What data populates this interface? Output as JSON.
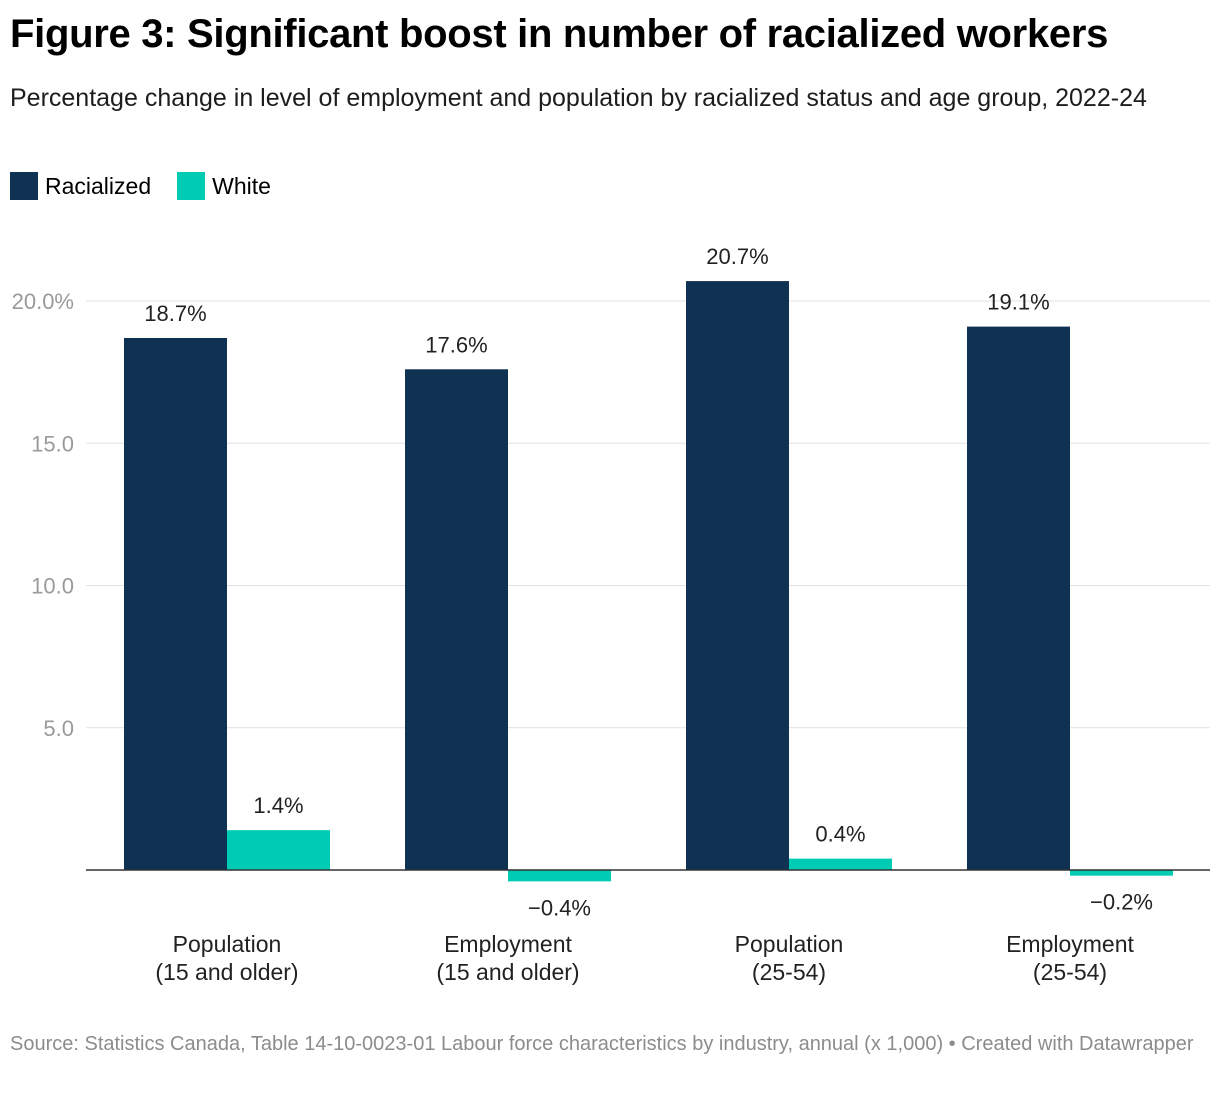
{
  "title": "Figure 3: Significant boost in number of racialized workers",
  "subtitle": "Percentage change in level of employment and population by racialized status and age group, 2022-24",
  "legend": [
    {
      "name": "Racialized",
      "color": "#0f3152"
    },
    {
      "name": "White",
      "color": "#00ccb4"
    }
  ],
  "source": "Source: Statistics Canada, Table 14-10-0023-01 Labour force characteristics by industry, annual (x 1,000) • Created with Datawrapper",
  "chart_data": {
    "type": "bar",
    "title": "Figure 3: Significant boost in number of racialized workers",
    "xlabel": "",
    "ylabel": "",
    "ylim": [
      0,
      20
    ],
    "yticks": [
      {
        "value": 20,
        "label": "20.0%"
      },
      {
        "value": 15,
        "label": "15.0"
      },
      {
        "value": 10,
        "label": "10.0"
      },
      {
        "value": 5,
        "label": "5.0"
      }
    ],
    "grid": true,
    "categories": [
      [
        "Population",
        "(15 and older)"
      ],
      [
        "Employment",
        "(15 and older)"
      ],
      [
        "Population",
        "(25-54)"
      ],
      [
        "Employment",
        "(25-54)"
      ]
    ],
    "series": [
      {
        "name": "Racialized",
        "color": "#0f3152",
        "values": [
          18.7,
          17.6,
          20.7,
          19.1
        ],
        "labels": [
          "18.7%",
          "17.6%",
          "20.7%",
          "19.1%"
        ]
      },
      {
        "name": "White",
        "color": "#00ccb4",
        "values": [
          1.4,
          -0.4,
          0.4,
          -0.2
        ],
        "labels": [
          "1.4%",
          "−0.4%",
          "0.4%",
          "−0.2%"
        ]
      }
    ]
  }
}
